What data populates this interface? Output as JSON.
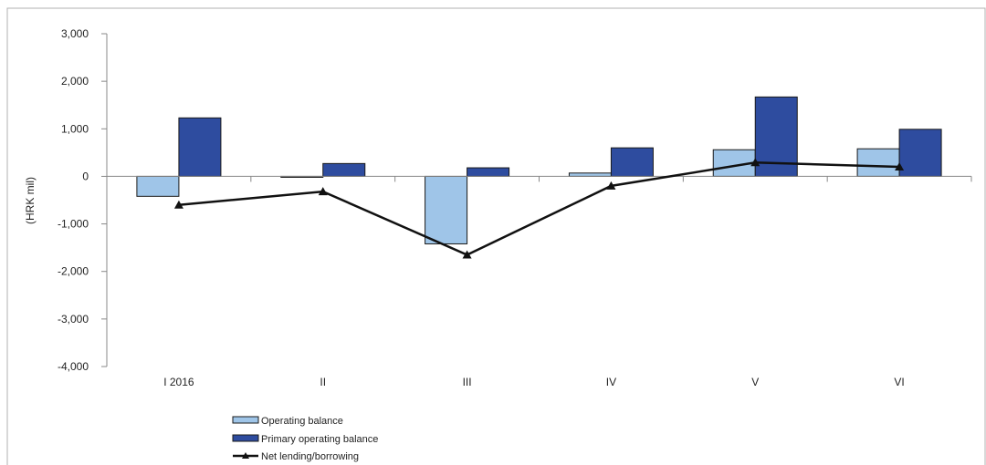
{
  "chart_data": {
    "type": "bar",
    "ylabel": "(HRK mil)",
    "ylim": [
      -4000,
      3000
    ],
    "ytick_step": 1000,
    "yticks": [
      "-4,000",
      "-3,000",
      "-2,000",
      "-1,000",
      "0",
      "1,000",
      "2,000",
      "3,000"
    ],
    "categories": [
      "I 2016",
      "II",
      "III",
      "IV",
      "V",
      "VI"
    ],
    "series": [
      {
        "name": "Operating balance",
        "type": "bar",
        "color": "#9fc5e8",
        "values": [
          -420,
          -20,
          -1420,
          70,
          560,
          580
        ]
      },
      {
        "name": "Primary operating balance",
        "type": "bar",
        "color": "#2e4c9f",
        "values": [
          1230,
          270,
          180,
          600,
          1670,
          990
        ]
      },
      {
        "name": "Net lending/borrowing",
        "type": "line",
        "color": "#111111",
        "values": [
          -600,
          -320,
          -1650,
          -200,
          290,
          200
        ]
      }
    ],
    "legend_position": "bottom-left",
    "grid": false
  }
}
